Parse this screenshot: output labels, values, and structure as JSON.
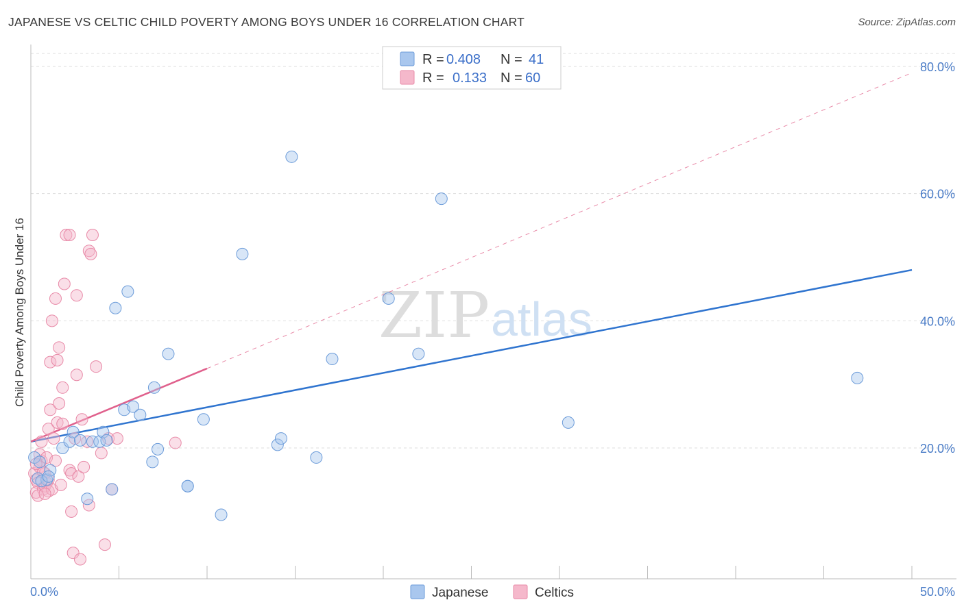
{
  "header": {
    "title": "JAPANESE VS CELTIC CHILD POVERTY AMONG BOYS UNDER 16 CORRELATION CHART",
    "source": "Source: ZipAtlas.com"
  },
  "watermark": {
    "zip": "ZIP",
    "atlas": "atlas"
  },
  "colors": {
    "japanese_fill": "#a9c7ee",
    "japanese_stroke": "#6b9bd9",
    "japanese_line": "#2f74cf",
    "celtics_fill": "#f5b8cb",
    "celtics_stroke": "#e889a7",
    "celtics_line": "#e0608c",
    "tick_label": "#4a7cc7",
    "grid": "#dddddd"
  },
  "legend": {
    "rows": [
      {
        "r_label": "R =",
        "r_value": "0.408",
        "n_label": "N =",
        "n_value": "41"
      },
      {
        "r_label": "R =",
        "r_value": "0.133",
        "n_label": "N =",
        "n_value": "60"
      }
    ]
  },
  "chart_data": {
    "type": "scatter",
    "title": "JAPANESE VS CELTIC CHILD POVERTY AMONG BOYS UNDER 16 CORRELATION CHART",
    "xlabel": "",
    "ylabel": "Child Poverty Among Boys Under 16",
    "xlim": [
      0,
      50
    ],
    "ylim": [
      0,
      82
    ],
    "x_tick_labels": [
      "0.0%",
      "50.0%"
    ],
    "y_ticks": [
      20,
      40,
      60,
      80
    ],
    "y_tick_labels": [
      "20.0%",
      "40.0%",
      "60.0%",
      "80.0%"
    ],
    "grid": true,
    "legend_position": "top-center",
    "series": [
      {
        "name": "Japanese",
        "R": 0.408,
        "N": 41,
        "trend": {
          "x": [
            0,
            50
          ],
          "y": [
            21.0,
            48.0
          ],
          "style": "solid"
        },
        "points": [
          [
            0.2,
            18.5
          ],
          [
            0.4,
            15.2
          ],
          [
            0.5,
            17.8
          ],
          [
            0.9,
            15.0
          ],
          [
            1.1,
            16.5
          ],
          [
            1.8,
            20.0
          ],
          [
            2.2,
            21.0
          ],
          [
            2.4,
            22.5
          ],
          [
            2.8,
            21.2
          ],
          [
            3.2,
            12.0
          ],
          [
            3.5,
            21.0
          ],
          [
            3.9,
            21.0
          ],
          [
            4.1,
            22.5
          ],
          [
            4.3,
            21.2
          ],
          [
            4.6,
            13.5
          ],
          [
            4.8,
            42.0
          ],
          [
            5.3,
            26.0
          ],
          [
            5.5,
            44.6
          ],
          [
            5.8,
            26.5
          ],
          [
            6.2,
            25.2
          ],
          [
            6.9,
            17.8
          ],
          [
            7.0,
            29.5
          ],
          [
            7.2,
            19.8
          ],
          [
            7.8,
            34.8
          ],
          [
            8.9,
            14.0
          ],
          [
            8.9,
            14.0
          ],
          [
            9.8,
            24.5
          ],
          [
            10.8,
            9.5
          ],
          [
            12.0,
            50.5
          ],
          [
            14.0,
            20.5
          ],
          [
            14.2,
            21.5
          ],
          [
            14.8,
            65.8
          ],
          [
            16.2,
            18.5
          ],
          [
            17.1,
            34.0
          ],
          [
            20.3,
            43.5
          ],
          [
            22.0,
            34.8
          ],
          [
            23.3,
            59.2
          ],
          [
            30.5,
            24.0
          ],
          [
            46.9,
            31.0
          ],
          [
            0.6,
            14.8
          ],
          [
            1.0,
            15.5
          ]
        ]
      },
      {
        "name": "Celtics",
        "R": 0.133,
        "N": 60,
        "trend": {
          "x": [
            0,
            10
          ],
          "y": [
            21.0,
            32.5
          ],
          "style": "solid",
          "extension": {
            "x": [
              10,
              50
            ],
            "y": [
              32.5,
              79.0
            ],
            "style": "dashed"
          }
        },
        "points": [
          [
            0.2,
            16.0
          ],
          [
            0.3,
            15.0
          ],
          [
            0.4,
            14.5
          ],
          [
            0.3,
            13.0
          ],
          [
            0.5,
            17.0
          ],
          [
            0.6,
            18.0
          ],
          [
            0.7,
            13.5
          ],
          [
            0.8,
            14.0
          ],
          [
            0.8,
            16.0
          ],
          [
            0.9,
            14.5
          ],
          [
            1.0,
            23.0
          ],
          [
            1.0,
            13.2
          ],
          [
            1.1,
            26.0
          ],
          [
            1.1,
            33.5
          ],
          [
            1.2,
            40.0
          ],
          [
            1.3,
            21.5
          ],
          [
            1.4,
            43.5
          ],
          [
            1.5,
            24.0
          ],
          [
            1.5,
            33.8
          ],
          [
            1.6,
            35.8
          ],
          [
            1.6,
            27.0
          ],
          [
            1.8,
            29.5
          ],
          [
            1.8,
            23.8
          ],
          [
            1.9,
            45.8
          ],
          [
            2.0,
            53.5
          ],
          [
            2.2,
            53.5
          ],
          [
            2.2,
            16.5
          ],
          [
            2.3,
            16.0
          ],
          [
            2.3,
            10.0
          ],
          [
            2.4,
            3.5
          ],
          [
            2.5,
            21.5
          ],
          [
            2.6,
            31.5
          ],
          [
            2.6,
            44.0
          ],
          [
            2.7,
            15.5
          ],
          [
            2.8,
            2.5
          ],
          [
            2.9,
            24.5
          ],
          [
            3.0,
            17.0
          ],
          [
            3.2,
            21.0
          ],
          [
            3.3,
            51.0
          ],
          [
            3.3,
            11.0
          ],
          [
            3.4,
            50.5
          ],
          [
            3.5,
            53.5
          ],
          [
            3.7,
            32.8
          ],
          [
            4.0,
            19.2
          ],
          [
            4.2,
            4.8
          ],
          [
            4.4,
            21.5
          ],
          [
            4.6,
            13.5
          ],
          [
            4.9,
            21.5
          ],
          [
            8.2,
            20.8
          ],
          [
            0.4,
            12.5
          ],
          [
            0.5,
            19.0
          ],
          [
            0.7,
            16.2
          ],
          [
            0.9,
            18.5
          ],
          [
            1.0,
            15.0
          ],
          [
            1.2,
            13.5
          ],
          [
            0.6,
            21.0
          ],
          [
            0.3,
            17.5
          ],
          [
            0.8,
            12.8
          ],
          [
            1.4,
            18.0
          ],
          [
            1.7,
            14.2
          ]
        ]
      }
    ]
  },
  "bottom_legend": {
    "items": [
      "Japanese",
      "Celtics"
    ]
  }
}
